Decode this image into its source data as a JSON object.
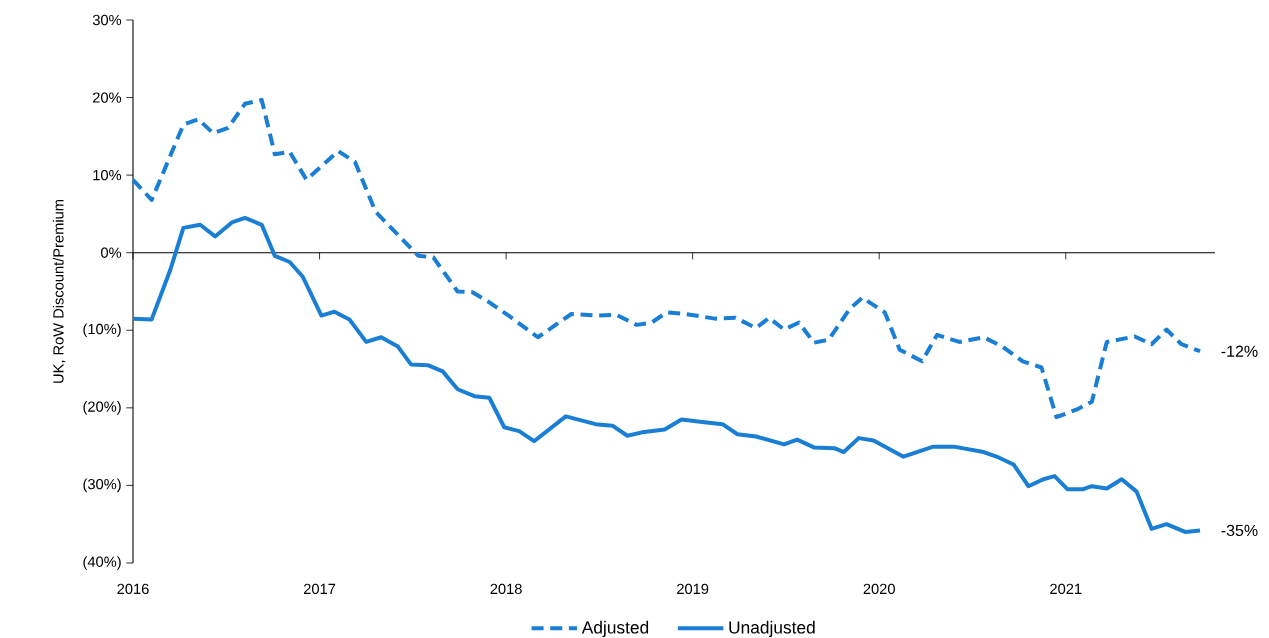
{
  "chart_data": {
    "type": "line",
    "ylabel": "UK, RoW Discount/Premium",
    "xlim": [
      2016,
      2021.8
    ],
    "xticks": [
      2016,
      2017,
      2018,
      2019,
      2020,
      2021
    ],
    "ylim": [
      -40,
      30
    ],
    "yticks": [
      {
        "value": 30,
        "label": "30%"
      },
      {
        "value": 20,
        "label": "20%"
      },
      {
        "value": 10,
        "label": "10%"
      },
      {
        "value": 0,
        "label": "0%"
      },
      {
        "value": -10,
        "label": "(10%)"
      },
      {
        "value": -20,
        "label": "(20%)"
      },
      {
        "value": -30,
        "label": "(30%)"
      },
      {
        "value": -40,
        "label": "(40%)"
      }
    ],
    "legend": "bottom",
    "series": [
      {
        "name": "Adjusted",
        "color": "#1a7fd4",
        "line_style": "dashed",
        "x": [
          2016.0,
          2016.1,
          2016.27,
          2016.35,
          2016.43,
          2016.51,
          2016.6,
          2016.69,
          2016.76,
          2016.84,
          2016.93,
          2017.1,
          2017.19,
          2017.3,
          2017.42,
          2017.53,
          2017.61,
          2017.74,
          2017.82,
          2017.91,
          2018.03,
          2018.17,
          2018.35,
          2018.48,
          2018.59,
          2018.7,
          2018.78,
          2018.86,
          2018.96,
          2019.12,
          2019.23,
          2019.34,
          2019.41,
          2019.49,
          2019.57,
          2019.65,
          2019.73,
          2019.84,
          2019.91,
          2020.03,
          2020.11,
          2020.23,
          2020.31,
          2020.43,
          2020.56,
          2020.66,
          2020.77,
          2020.87,
          2020.95,
          2021.06,
          2021.14,
          2021.22,
          2021.37,
          2021.46,
          2021.54,
          2021.62,
          2021.72
        ],
        "values": [
          9.4,
          6.8,
          16.5,
          17.2,
          15.4,
          16.1,
          19.2,
          19.7,
          12.7,
          13.0,
          9.4,
          13.1,
          11.7,
          5.3,
          2.3,
          -0.4,
          -0.6,
          -5.0,
          -5.1,
          -6.4,
          -8.4,
          -10.9,
          -7.9,
          -8.1,
          -8.0,
          -9.3,
          -9.0,
          -7.7,
          -7.9,
          -8.5,
          -8.4,
          -9.7,
          -8.4,
          -9.9,
          -9.0,
          -11.6,
          -11.2,
          -7.3,
          -5.8,
          -7.7,
          -12.5,
          -14.0,
          -10.6,
          -11.5,
          -10.9,
          -12.1,
          -14.0,
          -14.8,
          -21.2,
          -20.2,
          -19.2,
          -11.5,
          -10.8,
          -11.8,
          -9.9,
          -11.8,
          -12.7
        ]
      },
      {
        "name": "Unadjusted",
        "color": "#1a7fd4",
        "line_style": "solid",
        "x": [
          2016.0,
          2016.1,
          2016.2,
          2016.27,
          2016.36,
          2016.44,
          2016.53,
          2016.6,
          2016.69,
          2016.76,
          2016.84,
          2016.91,
          2017.01,
          2017.08,
          2017.16,
          2017.25,
          2017.33,
          2017.42,
          2017.49,
          2017.58,
          2017.66,
          2017.74,
          2017.83,
          2017.91,
          2017.99,
          2018.07,
          2018.15,
          2018.32,
          2018.48,
          2018.57,
          2018.65,
          2018.74,
          2018.85,
          2018.94,
          2019.04,
          2019.16,
          2019.24,
          2019.34,
          2019.49,
          2019.56,
          2019.65,
          2019.76,
          2019.81,
          2019.89,
          2019.97,
          2020.13,
          2020.29,
          2020.4,
          2020.56,
          2020.64,
          2020.72,
          2020.8,
          2020.88,
          2020.94,
          2021.01,
          2021.09,
          2021.14,
          2021.22,
          2021.3,
          2021.38,
          2021.46,
          2021.54,
          2021.64,
          2021.72
        ],
        "values": [
          -8.5,
          -8.6,
          -2.2,
          3.2,
          3.6,
          2.1,
          3.9,
          4.5,
          3.6,
          -0.4,
          -1.2,
          -3.1,
          -8.1,
          -7.6,
          -8.6,
          -11.5,
          -10.9,
          -12.1,
          -14.4,
          -14.5,
          -15.3,
          -17.6,
          -18.5,
          -18.7,
          -22.5,
          -23.0,
          -24.3,
          -21.1,
          -22.1,
          -22.3,
          -23.6,
          -23.1,
          -22.8,
          -21.5,
          -21.8,
          -22.1,
          -23.4,
          -23.7,
          -24.7,
          -24.1,
          -25.1,
          -25.2,
          -25.7,
          -23.9,
          -24.2,
          -26.3,
          -25.0,
          -25.0,
          -25.7,
          -26.4,
          -27.3,
          -30.1,
          -29.2,
          -28.8,
          -30.5,
          -30.5,
          -30.1,
          -30.4,
          -29.2,
          -30.8,
          -35.6,
          -35.0,
          -36.0,
          -35.8
        ]
      }
    ],
    "annotations": [
      {
        "text": "-12%",
        "x": 2021.72,
        "y": -12.7
      },
      {
        "text": "-35%",
        "x": 2021.72,
        "y": -35.8
      }
    ]
  }
}
